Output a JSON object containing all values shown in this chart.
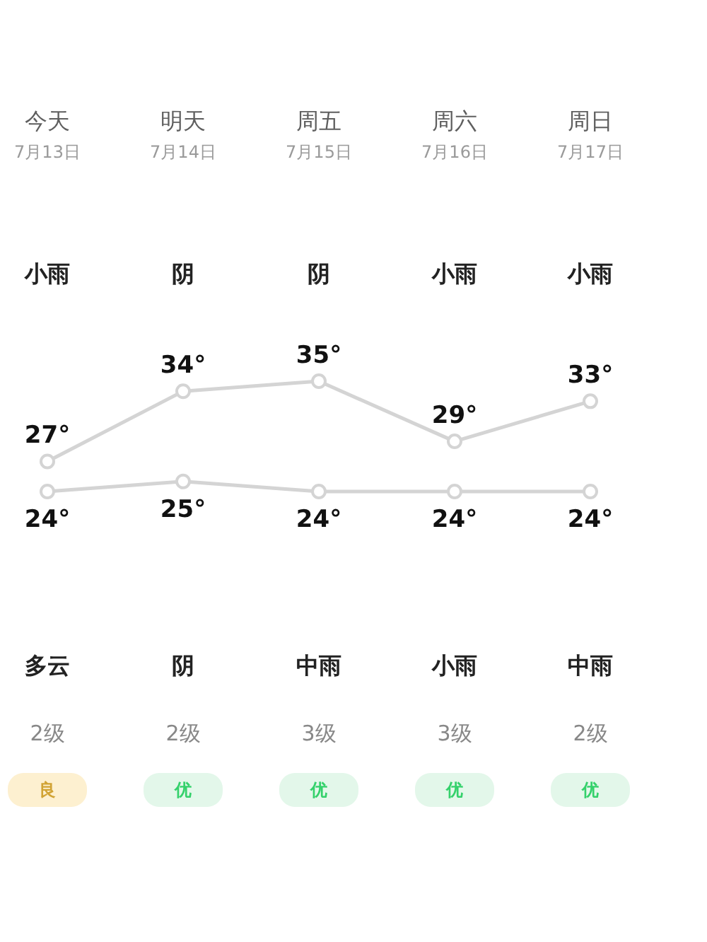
{
  "chart_data": [
    {
      "type": "line",
      "categories": [
        "今天\n7月13日",
        "明天\n7月14日",
        "周五\n7月15日",
        "周六\n7月16日",
        "周日\n7月17日"
      ],
      "series": [
        {
          "color": "#d4d4d4",
          "values": [
            27,
            34,
            35,
            29,
            33
          ],
          "value_labels": [
            "27°",
            "34°",
            "35°",
            "29°",
            "33°"
          ]
        },
        {
          "color": "#d4d4d4",
          "values": [
            24,
            25,
            24,
            24,
            24
          ],
          "value_labels": [
            "24°",
            "25°",
            "24°",
            "24°",
            "24°"
          ]
        }
      ],
      "marker": "circle",
      "line_style": "solid",
      "tick_labels": "x",
      "annotations": [
        "小雨",
        "阴",
        "阴",
        "小雨",
        "小雨",
        "多云",
        "阴",
        "中雨",
        "小雨",
        "中雨",
        "2级",
        "2级",
        "3级",
        "3级",
        "2级"
      ]
    },
    {
      "type": "other",
      "annotations": [
        "良",
        "优",
        "优",
        "优",
        "优"
      ],
      "colors": [
        "#fdf0d0",
        "#e3f7ea",
        "#e3f7ea",
        "#e3f7ea",
        "#e3f7ea"
      ]
    }
  ]
}
